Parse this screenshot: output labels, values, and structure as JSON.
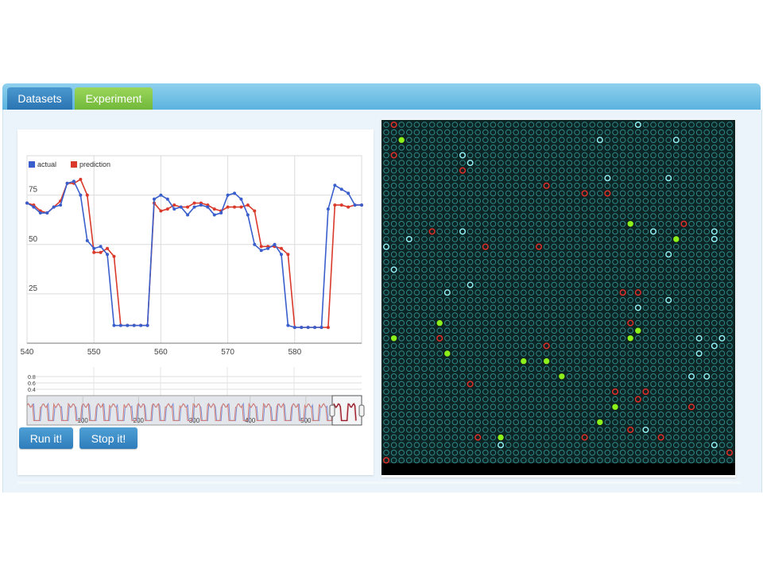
{
  "tabs": {
    "datasets": "Datasets",
    "experiment": "Experiment"
  },
  "buttons": {
    "run": "Run it!",
    "stop": "Stop it!"
  },
  "colors": {
    "actual": "#3a5fcd",
    "prediction": "#d93a2b",
    "grid_bg": "#0d2424",
    "cell_inactive": "#2f8a8a",
    "cell_cyan": "#8ff0f5",
    "cell_red": "#e0302a",
    "cell_green": "#8ef01a"
  },
  "chart_data": {
    "type": "line",
    "legend": [
      "actual",
      "prediction"
    ],
    "legend_position": "top-left",
    "x": [
      540,
      541,
      542,
      543,
      544,
      545,
      546,
      547,
      548,
      549,
      550,
      551,
      552,
      553,
      554,
      555,
      556,
      557,
      558,
      559,
      560,
      561,
      562,
      563,
      564,
      565,
      566,
      567,
      568,
      569,
      570,
      571,
      572,
      573,
      574,
      575,
      576,
      577,
      578,
      579,
      580,
      581,
      582,
      583,
      584,
      585,
      586,
      587,
      588,
      589,
      590
    ],
    "series": [
      {
        "name": "actual",
        "values": [
          71,
          69,
          66,
          66,
          69,
          70,
          81,
          82,
          75,
          52,
          48,
          49,
          45,
          9,
          9,
          9,
          9,
          9,
          9,
          73,
          75,
          73,
          68,
          69,
          65,
          69,
          70,
          69,
          65,
          66,
          75,
          76,
          73,
          65,
          50,
          47,
          48,
          50,
          45,
          9,
          8,
          8,
          8,
          8,
          8,
          68,
          80,
          78,
          76,
          70,
          70
        ]
      },
      {
        "name": "prediction",
        "values": [
          71,
          70,
          67,
          66,
          69,
          72,
          81,
          81,
          83,
          75,
          46,
          46,
          48,
          44,
          9,
          9,
          9,
          9,
          9,
          71,
          67,
          68,
          70,
          69,
          69,
          71,
          71,
          70,
          68,
          67,
          69,
          69,
          69,
          70,
          67,
          49,
          49,
          49,
          48,
          45,
          8,
          8,
          8,
          8,
          8,
          8,
          70,
          70,
          69,
          70,
          70
        ]
      }
    ],
    "xticks": [
      540,
      550,
      560,
      570,
      580
    ],
    "yticks": [
      25,
      50,
      75
    ],
    "xlim": [
      540,
      590
    ],
    "ylim": [
      0,
      95
    ],
    "grid": true,
    "navigator": {
      "x_ticks": [
        100,
        200,
        300,
        400,
        500
      ],
      "y_ticks": [
        "0.8",
        "0.6",
        "0.4"
      ]
    }
  },
  "cell_grid": {
    "rows": 45,
    "cols": 46,
    "active_cells": [
      [
        0,
        1,
        "red"
      ],
      [
        0,
        33,
        "cyan"
      ],
      [
        2,
        2,
        "green"
      ],
      [
        2,
        28,
        "cyan"
      ],
      [
        2,
        38,
        "cyan"
      ],
      [
        4,
        1,
        "red"
      ],
      [
        4,
        10,
        "cyan"
      ],
      [
        5,
        11,
        "cyan"
      ],
      [
        6,
        10,
        "red"
      ],
      [
        7,
        29,
        "cyan"
      ],
      [
        7,
        37,
        "cyan"
      ],
      [
        8,
        21,
        "red"
      ],
      [
        9,
        26,
        "red"
      ],
      [
        9,
        29,
        "red"
      ],
      [
        13,
        32,
        "green"
      ],
      [
        13,
        39,
        "red"
      ],
      [
        14,
        6,
        "red"
      ],
      [
        14,
        10,
        "cyan"
      ],
      [
        14,
        35,
        "cyan"
      ],
      [
        14,
        43,
        "cyan"
      ],
      [
        15,
        3,
        "cyan"
      ],
      [
        15,
        38,
        "green"
      ],
      [
        15,
        43,
        "cyan"
      ],
      [
        16,
        0,
        "cyan"
      ],
      [
        16,
        13,
        "red"
      ],
      [
        16,
        20,
        "red"
      ],
      [
        17,
        37,
        "cyan"
      ],
      [
        19,
        1,
        "cyan"
      ],
      [
        21,
        11,
        "cyan"
      ],
      [
        22,
        8,
        "cyan"
      ],
      [
        22,
        31,
        "red"
      ],
      [
        22,
        33,
        "red"
      ],
      [
        23,
        37,
        "cyan"
      ],
      [
        24,
        33,
        "cyan"
      ],
      [
        26,
        7,
        "green"
      ],
      [
        26,
        32,
        "red"
      ],
      [
        27,
        33,
        "green"
      ],
      [
        28,
        1,
        "green"
      ],
      [
        28,
        7,
        "red"
      ],
      [
        28,
        32,
        "green"
      ],
      [
        28,
        41,
        "cyan"
      ],
      [
        28,
        44,
        "cyan"
      ],
      [
        29,
        21,
        "red"
      ],
      [
        29,
        43,
        "cyan"
      ],
      [
        30,
        8,
        "green"
      ],
      [
        30,
        41,
        "cyan"
      ],
      [
        31,
        18,
        "green"
      ],
      [
        31,
        21,
        "green"
      ],
      [
        33,
        23,
        "green"
      ],
      [
        33,
        40,
        "cyan"
      ],
      [
        33,
        42,
        "cyan"
      ],
      [
        34,
        11,
        "red"
      ],
      [
        35,
        30,
        "red"
      ],
      [
        35,
        34,
        "red"
      ],
      [
        36,
        33,
        "red"
      ],
      [
        37,
        30,
        "green"
      ],
      [
        37,
        40,
        "red"
      ],
      [
        39,
        28,
        "green"
      ],
      [
        40,
        32,
        "red"
      ],
      [
        40,
        34,
        "cyan"
      ],
      [
        41,
        12,
        "red"
      ],
      [
        41,
        15,
        "green"
      ],
      [
        41,
        26,
        "red"
      ],
      [
        41,
        36,
        "red"
      ],
      [
        42,
        15,
        "cyan"
      ],
      [
        42,
        43,
        "cyan"
      ],
      [
        43,
        45,
        "red"
      ],
      [
        44,
        0,
        "red"
      ]
    ]
  }
}
